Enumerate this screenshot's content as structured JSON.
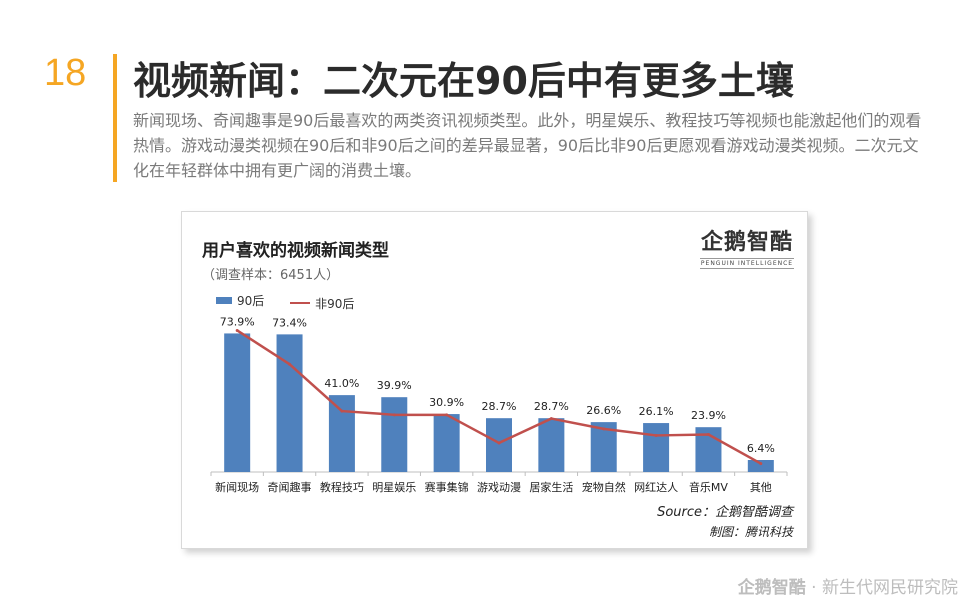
{
  "page": {
    "number": "18",
    "title": "视频新闻：二次元在90后中有更多土壤",
    "description": "新闻现场、奇闻趣事是90后最喜欢的两类资讯视频类型。此外，明星娱乐、教程技巧等视频也能激起他们的观看热情。游戏动漫类视频在90后和非90后之间的差异最显著，90后比非90后更愿观看游戏动漫类视频。二次元文化在年轻群体中拥有更广阔的消费土壤。"
  },
  "logo": {
    "main": "企鹅智酷",
    "sub": "PENGUIN INTELLIGENCE"
  },
  "chart_data": {
    "type": "bar",
    "title": "用户喜欢的视频新闻类型",
    "subtitle": "（调查样本：6451人）",
    "categories": [
      "新闻现场",
      "奇闻趣事",
      "教程技巧",
      "明星娱乐",
      "赛事集锦",
      "游戏动漫",
      "居家生活",
      "宠物自然",
      "网红达人",
      "音乐MV",
      "其他"
    ],
    "series": [
      {
        "name": "90后",
        "type": "bar",
        "color": "#4f81bd",
        "values": [
          73.9,
          73.4,
          41.0,
          39.9,
          30.9,
          28.7,
          28.7,
          26.6,
          26.1,
          23.9,
          6.4
        ],
        "labels": [
          "73.9%",
          "73.4%",
          "41.0%",
          "39.9%",
          "30.9%",
          "28.7%",
          "28.7%",
          "26.6%",
          "26.1%",
          "23.9%",
          "6.4%"
        ]
      },
      {
        "name": "非90后",
        "type": "line",
        "color": "#c0504d",
        "values": [
          75.5,
          57.5,
          32.5,
          30.5,
          30.5,
          15.5,
          28.5,
          23.0,
          19.5,
          20.0,
          4.5
        ]
      }
    ],
    "ylim": [
      0,
      80
    ],
    "xlabel": "",
    "ylabel": "",
    "legend": "top-left",
    "grid": false
  },
  "source": "Source：企鹅智酷调查",
  "credit": "制图：腾讯科技",
  "footer": {
    "brand": "企鹅智酷",
    "text": " · 新生代网民研究院"
  }
}
